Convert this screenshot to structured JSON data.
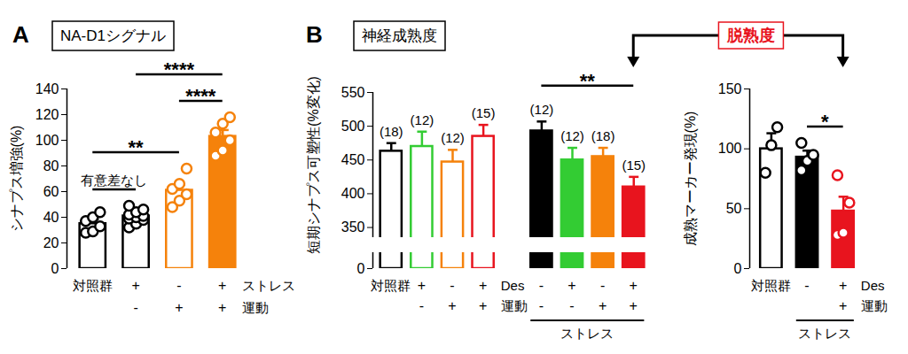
{
  "chart_data": [
    {
      "type": "bar",
      "panel": "A",
      "title": "NA-D1シグナル",
      "ylabel": "シナプス増強(%)",
      "categories": [
        "対照群",
        null,
        null,
        null
      ],
      "values": [
        35,
        41,
        61,
        103
      ],
      "errors": [
        3.5,
        2.5,
        4.5,
        5
      ],
      "colors": [
        "#000000",
        "#000000",
        "#f5820b",
        "#f5820b"
      ],
      "fill_colors": [
        "#ffffff",
        "#ffffff",
        "#ffffff",
        "#f5820b"
      ],
      "points": [
        [
          28,
          29,
          33,
          37,
          40,
          44
        ],
        [
          32,
          35,
          38,
          39,
          40,
          41,
          42,
          44,
          46,
          49
        ],
        [
          48,
          53,
          58,
          62,
          66,
          78
        ],
        [
          88,
          92,
          100,
          106,
          113,
          118
        ]
      ],
      "ylim": [
        0,
        140
      ],
      "yticks": [
        0,
        20,
        40,
        60,
        80,
        100,
        120,
        140
      ],
      "condition_rows": [
        {
          "name": "ストレス",
          "values": [
            null,
            "+",
            "-",
            "+"
          ]
        },
        {
          "name": "運動",
          "values": [
            null,
            "-",
            "+",
            "+"
          ]
        }
      ],
      "comparisons": [
        {
          "from": 0,
          "to": 1,
          "label": "有意差なし"
        },
        {
          "from": 0,
          "to": 2,
          "label": "**"
        },
        {
          "from": 2,
          "to": 3,
          "label": "****"
        },
        {
          "from": 1,
          "to": 3,
          "label": "****"
        }
      ]
    },
    {
      "type": "bar",
      "panel": "B",
      "title": "神経成熟度",
      "ylabel": "短期シナプス可塑性(%変化)",
      "categories": [
        "対照群",
        null,
        null,
        null,
        null,
        null,
        null,
        null
      ],
      "values": [
        463,
        470,
        447,
        485,
        493,
        450,
        455,
        410
      ],
      "errors": [
        12,
        22,
        18,
        17,
        14,
        18,
        13,
        15
      ],
      "n_labels": [
        "(18)",
        "(12)",
        "(12)",
        "(15)",
        "(12)",
        "(12)",
        "(18)",
        "(15)"
      ],
      "colors": [
        "#000000",
        "#33cc33",
        "#f5820b",
        "#e8141e",
        "#000000",
        "#33cc33",
        "#f5820b",
        "#e8141e"
      ],
      "fill_colors": [
        "#ffffff",
        "#ffffff",
        "#ffffff",
        "#ffffff",
        "#000000",
        "#33cc33",
        "#f5820b",
        "#e8141e"
      ],
      "ylim": [
        0,
        550
      ],
      "yticks": [
        0,
        350,
        400,
        450,
        500,
        550
      ],
      "axis_break": [
        20,
        335
      ],
      "condition_rows": [
        {
          "name": "Des",
          "values": [
            null,
            "+",
            "-",
            "+",
            "-",
            "+",
            "-",
            "+"
          ]
        },
        {
          "name": "運動",
          "values": [
            null,
            "-",
            "+",
            "+",
            "-",
            "-",
            "+",
            "+"
          ]
        }
      ],
      "group_label": {
        "text": "ストレス",
        "from": 4,
        "to": 7
      },
      "comparisons": [
        {
          "from": 4,
          "to": 7,
          "label": "**"
        }
      ]
    },
    {
      "type": "bar",
      "ylabel": "成熟マーカー発現(%)",
      "categories": [
        "対照群",
        null,
        null
      ],
      "values": [
        100,
        93,
        48
      ],
      "errors": [
        13,
        5.5,
        12
      ],
      "colors": [
        "#000000",
        "#000000",
        "#e8141e"
      ],
      "fill_colors": [
        "#ffffff",
        "#000000",
        "#e8141e"
      ],
      "points": [
        [
          80,
          103,
          118
        ],
        [
          82,
          90,
          95,
          105
        ],
        [
          28,
          30,
          55,
          78
        ]
      ],
      "ylim": [
        0,
        150
      ],
      "yticks": [
        0,
        50,
        100,
        150
      ],
      "condition_rows": [
        {
          "name": "Des",
          "values": [
            null,
            "-",
            "+"
          ]
        },
        {
          "name": "運動",
          "values": [
            null,
            null,
            "+"
          ]
        }
      ],
      "group_label": {
        "text": "ストレス",
        "from": 1,
        "to": 2
      },
      "comparisons": [
        {
          "from": 1,
          "to": 2,
          "label": "*"
        }
      ],
      "bracket_annotation": {
        "text": "脱熟度",
        "color": "#e8141e",
        "from": {
          "chart": 1,
          "bar": 7
        },
        "to": {
          "chart": 2,
          "bar": 2
        }
      }
    }
  ]
}
